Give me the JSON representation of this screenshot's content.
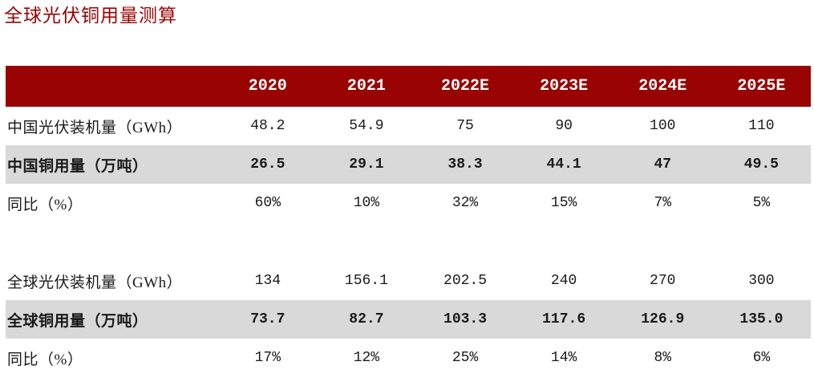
{
  "page_title": "全球光伏铜用量测算",
  "colors": {
    "title_color": "#990302",
    "header_bg": "#990302",
    "header_text": "#ffffff",
    "highlight_row_bg": "#d9d9d9"
  },
  "chart_data": {
    "type": "table",
    "title": "全球光伏铜用量测算",
    "columns": [
      "2020",
      "2021",
      "2022E",
      "2023E",
      "2024E",
      "2025E"
    ],
    "sections": [
      {
        "name": "china",
        "rows": [
          {
            "label": "中国光伏装机量（GWh）",
            "style": "plain",
            "values": [
              "48.2",
              "54.9",
              "75",
              "90",
              "100",
              "110"
            ]
          },
          {
            "label": "中国铜用量（万吨）",
            "style": "highlight",
            "values": [
              "26.5",
              "29.1",
              "38.3",
              "44.1",
              "47",
              "49.5"
            ]
          },
          {
            "label": "同比（%）",
            "style": "plain",
            "values": [
              "60%",
              "10%",
              "32%",
              "15%",
              "7%",
              "5%"
            ]
          }
        ]
      },
      {
        "name": "global",
        "rows": [
          {
            "label": "全球光伏装机量（GWh）",
            "style": "plain",
            "values": [
              "134",
              "156.1",
              "202.5",
              "240",
              "270",
              "300"
            ]
          },
          {
            "label": "全球铜用量（万吨）",
            "style": "highlight",
            "values": [
              "73.7",
              "82.7",
              "103.3",
              "117.6",
              "126.9",
              "135.0"
            ]
          },
          {
            "label": "同比（%）",
            "style": "plain",
            "values": [
              "17%",
              "12%",
              "25%",
              "14%",
              "8%",
              "6%"
            ]
          }
        ]
      }
    ]
  }
}
